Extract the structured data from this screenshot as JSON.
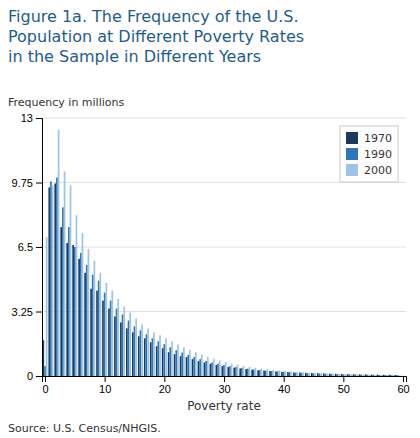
{
  "chart_data": {
    "type": "bar",
    "title": "Figure 1a. The Frequency of the U.S.\nPopulation at Different Poverty Rates\nin the Sample in Different Years",
    "x_label": "Poverty rate",
    "y_label": "Frequency in millions",
    "source": "Source: U.S. Census/NHGIS.",
    "x": [
      0,
      1,
      2,
      3,
      4,
      5,
      6,
      7,
      8,
      9,
      10,
      11,
      12,
      13,
      14,
      15,
      16,
      17,
      18,
      19,
      20,
      21,
      22,
      23,
      24,
      25,
      26,
      27,
      28,
      29,
      30,
      31,
      32,
      33,
      34,
      35,
      36,
      37,
      38,
      39,
      40,
      41,
      42,
      43,
      44,
      45,
      46,
      47,
      48,
      49,
      50,
      51,
      52,
      53,
      54,
      55,
      56,
      57,
      58,
      59
    ],
    "series": [
      {
        "name": "1970",
        "color": "#1A3A5C",
        "values": [
          1.8,
          9.5,
          9.7,
          7.5,
          6.7,
          6.6,
          5.9,
          5.2,
          4.4,
          4.3,
          3.8,
          3.4,
          3.0,
          2.7,
          2.4,
          2.2,
          2.0,
          1.9,
          1.7,
          1.5,
          1.4,
          1.2,
          1.1,
          1.0,
          0.95,
          0.85,
          0.75,
          0.68,
          0.62,
          0.56,
          0.5,
          0.45,
          0.42,
          0.38,
          0.35,
          0.32,
          0.29,
          0.27,
          0.25,
          0.23,
          0.21,
          0.2,
          0.18,
          0.17,
          0.16,
          0.15,
          0.14,
          0.13,
          0.12,
          0.11,
          0.1,
          0.09,
          0.09,
          0.08,
          0.08,
          0.07,
          0.07,
          0.06,
          0.06,
          0.05
        ]
      },
      {
        "name": "1990",
        "color": "#2E75B6",
        "values": [
          0.5,
          9.8,
          10.0,
          8.5,
          7.5,
          6.5,
          6.2,
          5.6,
          5.1,
          4.8,
          4.2,
          3.8,
          3.4,
          3.1,
          2.8,
          2.5,
          2.3,
          2.1,
          1.9,
          1.75,
          1.6,
          1.45,
          1.3,
          1.18,
          1.06,
          0.95,
          0.85,
          0.76,
          0.68,
          0.62,
          0.55,
          0.5,
          0.45,
          0.41,
          0.37,
          0.33,
          0.3,
          0.27,
          0.25,
          0.23,
          0.21,
          0.19,
          0.17,
          0.16,
          0.14,
          0.13,
          0.12,
          0.11,
          0.1,
          0.09,
          0.08,
          0.08,
          0.07,
          0.07,
          0.06,
          0.06,
          0.05,
          0.05,
          0.04,
          0.04
        ]
      },
      {
        "name": "2000",
        "color": "#9DC3E6",
        "values": [
          7.0,
          9.6,
          12.4,
          10.3,
          9.6,
          8.1,
          7.2,
          6.4,
          5.8,
          5.2,
          4.7,
          4.3,
          3.9,
          3.5,
          3.2,
          2.9,
          2.6,
          2.4,
          2.2,
          2.05,
          1.9,
          1.75,
          1.6,
          1.45,
          1.32,
          1.2,
          1.08,
          0.97,
          0.87,
          0.78,
          0.7,
          0.63,
          0.57,
          0.51,
          0.46,
          0.42,
          0.38,
          0.34,
          0.31,
          0.28,
          0.26,
          0.23,
          0.21,
          0.19,
          0.17,
          0.16,
          0.14,
          0.13,
          0.12,
          0.11,
          0.1,
          0.09,
          0.08,
          0.07,
          0.07,
          0.06,
          0.06,
          0.05,
          0.05,
          0.04
        ]
      }
    ],
    "xlim": [
      -0.5,
      60.5
    ],
    "xticks": [
      0,
      10,
      20,
      30,
      40,
      50,
      60
    ],
    "ylim": [
      0,
      13
    ],
    "yticks": [
      0,
      3.25,
      6.5,
      9.75,
      13
    ],
    "grid": true,
    "legend": "upper right"
  }
}
